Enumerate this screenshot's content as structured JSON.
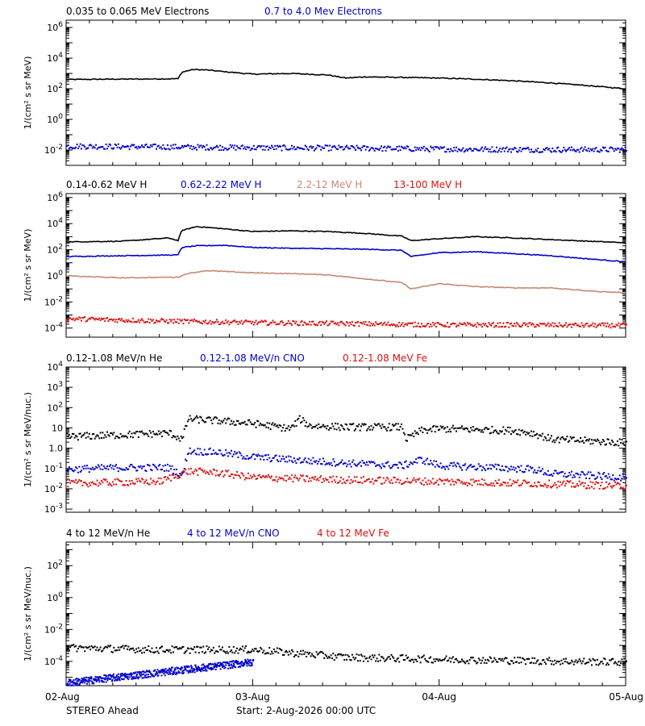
{
  "footer": {
    "left": "STEREO Ahead",
    "start": "Start:  2-Aug-2026 00:00 UTC"
  },
  "x_axis": {
    "labels": [
      "02-Aug",
      "03-Aug",
      "04-Aug",
      "05-Aug"
    ],
    "range_days": [
      0,
      3
    ]
  },
  "colors": {
    "black": "#000000",
    "blue": "#0000cc",
    "tan": "#c48a72",
    "red": "#dd1111"
  },
  "chart_data": [
    {
      "type": "scatter",
      "yscale": "log",
      "ylabel": "1/(cm² s sr MeV)",
      "ylim": [
        0.001,
        3000000
      ],
      "yticks": [
        {
          "m": "10",
          "e": "6",
          "v": 1000000
        },
        {
          "m": "10",
          "e": "4",
          "v": 10000
        },
        {
          "m": "10",
          "e": "2",
          "v": 100
        },
        {
          "m": "10",
          "e": "0",
          "v": 1
        },
        {
          "m": "10",
          "e": "-2",
          "v": 0.01
        }
      ],
      "legend": [
        "0.035 to 0.065 MeV Electrons",
        "0.7 to 4.0 Mev Electrons"
      ],
      "series": [
        {
          "name": "0.035 to 0.065 MeV Electrons",
          "color": "black",
          "style": "line",
          "x": [
            0,
            0.2,
            0.4,
            0.6,
            0.62,
            0.68,
            0.75,
            0.85,
            1.0,
            1.2,
            1.4,
            1.5,
            1.6,
            1.8,
            2.0,
            2.2,
            2.4,
            2.6,
            2.8,
            3.0
          ],
          "y": [
            400,
            420,
            430,
            450,
            1200,
            1800,
            1700,
            1300,
            900,
            1000,
            800,
            500,
            600,
            550,
            500,
            420,
            330,
            240,
            160,
            100
          ]
        },
        {
          "name": "0.7 to 4.0 Mev Electrons",
          "color": "blue",
          "style": "dots",
          "x": [
            0,
            0.5,
            1.0,
            1.5,
            2.0,
            2.5,
            3.0
          ],
          "y": [
            0.02,
            0.018,
            0.016,
            0.015,
            0.013,
            0.012,
            0.012
          ]
        }
      ]
    },
    {
      "type": "scatter",
      "yscale": "log",
      "ylabel": "1/(cm² s sr MeV)",
      "ylim": [
        2e-05,
        2000000
      ],
      "yticks": [
        {
          "m": "10",
          "e": "6",
          "v": 1000000
        },
        {
          "m": "10",
          "e": "4",
          "v": 10000
        },
        {
          "m": "10",
          "e": "2",
          "v": 100
        },
        {
          "m": "10",
          "e": "0",
          "v": 1
        },
        {
          "m": "10",
          "e": "-2",
          "v": 0.01
        },
        {
          "m": "10",
          "e": "-4",
          "v": 0.0001
        }
      ],
      "legend": [
        "0.14-0.62 MeV H",
        "0.62-2.22 MeV H",
        "2.2-12 MeV H",
        "13-100 MeV H"
      ],
      "series": [
        {
          "name": "0.14-0.62 MeV H",
          "color": "black",
          "style": "line",
          "x": [
            0,
            0.3,
            0.55,
            0.6,
            0.62,
            0.7,
            0.85,
            1.0,
            1.2,
            1.4,
            1.6,
            1.8,
            1.85,
            2.0,
            2.2,
            2.4,
            2.6,
            2.8,
            3.0
          ],
          "y": [
            400,
            450,
            800,
            500,
            3000,
            6000,
            4000,
            2500,
            2800,
            2500,
            1800,
            1100,
            500,
            700,
            1000,
            800,
            600,
            450,
            350
          ]
        },
        {
          "name": "0.62-2.22 MeV H",
          "color": "blue",
          "style": "line",
          "x": [
            0,
            0.3,
            0.6,
            0.62,
            0.7,
            0.85,
            1.0,
            1.2,
            1.4,
            1.6,
            1.8,
            1.85,
            2.0,
            2.2,
            2.4,
            2.6,
            2.8,
            3.0
          ],
          "y": [
            30,
            35,
            40,
            150,
            200,
            220,
            150,
            130,
            120,
            110,
            90,
            30,
            60,
            70,
            50,
            35,
            20,
            12
          ]
        },
        {
          "name": "2.2-12 MeV H",
          "color": "tan",
          "style": "line",
          "x": [
            0,
            0.3,
            0.6,
            0.65,
            0.75,
            0.9,
            1.0,
            1.2,
            1.4,
            1.6,
            1.8,
            1.85,
            2.0,
            2.2,
            2.4,
            2.6,
            2.8,
            3.0
          ],
          "y": [
            1,
            0.7,
            0.8,
            1.5,
            2.5,
            2.0,
            1.7,
            1.5,
            1.2,
            0.6,
            0.3,
            0.1,
            0.25,
            0.15,
            0.12,
            0.12,
            0.07,
            0.05
          ]
        },
        {
          "name": "13-100 MeV H",
          "color": "red",
          "style": "dots",
          "x": [
            0,
            0.5,
            1.0,
            1.5,
            2.0,
            2.5,
            3.0
          ],
          "y": [
            0.0006,
            0.0004,
            0.0003,
            0.00025,
            0.0002,
            0.0002,
            0.00018
          ]
        }
      ]
    },
    {
      "type": "scatter",
      "yscale": "log",
      "ylabel": "1/(cm² s sr MeV/nuc.)",
      "ylim": [
        0.0007,
        10000
      ],
      "yticks": [
        {
          "m": "10",
          "e": "4",
          "v": 10000
        },
        {
          "m": "10",
          "e": "3",
          "v": 1000
        },
        {
          "m": "10",
          "e": "2",
          "v": 100
        },
        {
          "m": "10",
          "e": "",
          "v": 10
        },
        {
          "m": "1.0",
          "e": "",
          "v": 1
        },
        {
          "m": "10",
          "e": "-1",
          "v": 0.1
        },
        {
          "m": "10",
          "e": "-2",
          "v": 0.01
        },
        {
          "m": "10",
          "e": "-3",
          "v": 0.001
        }
      ],
      "legend": [
        "0.12-1.08 MeV/n He",
        "0.12-1.08 MeV/n CNO",
        "0.12-1.08 MeV Fe"
      ],
      "series": [
        {
          "name": "0.12-1.08 MeV/n He",
          "color": "black",
          "style": "dots",
          "x": [
            0,
            0.3,
            0.55,
            0.62,
            0.65,
            0.8,
            1.0,
            1.2,
            1.25,
            1.3,
            1.5,
            1.8,
            1.82,
            1.9,
            2.0,
            2.2,
            2.4,
            2.5,
            2.6,
            2.8,
            3.0
          ],
          "y": [
            4,
            5,
            6,
            3,
            30,
            25,
            18,
            10,
            30,
            14,
            12,
            12,
            3,
            8,
            10,
            9,
            8,
            6,
            3,
            2.5,
            2
          ]
        },
        {
          "name": "0.12-1.08 MeV/n CNO",
          "color": "blue",
          "style": "dots",
          "x": [
            0,
            0.3,
            0.55,
            0.62,
            0.65,
            0.8,
            1.0,
            1.2,
            1.5,
            1.8,
            1.9,
            2.0,
            2.3,
            2.5,
            2.6,
            3.0
          ],
          "y": [
            0.1,
            0.12,
            0.12,
            0.05,
            0.8,
            0.7,
            0.4,
            0.3,
            0.2,
            0.15,
            0.3,
            0.15,
            0.12,
            0.1,
            0.06,
            0.04
          ]
        },
        {
          "name": "0.12-1.08 MeV Fe",
          "color": "red",
          "style": "dots",
          "x": [
            0,
            0.5,
            0.65,
            0.8,
            1.0,
            1.5,
            2.0,
            2.5,
            3.0
          ],
          "y": [
            0.02,
            0.025,
            0.08,
            0.07,
            0.04,
            0.03,
            0.025,
            0.02,
            0.015
          ]
        }
      ]
    },
    {
      "type": "scatter",
      "yscale": "log",
      "ylabel": "1/(cm² s sr MeV/nuc.)",
      "ylim": [
        3e-06,
        3000
      ],
      "yticks": [
        {
          "m": "10",
          "e": "2",
          "v": 100
        },
        {
          "m": "10",
          "e": "0",
          "v": 1
        },
        {
          "m": "10",
          "e": "-2",
          "v": 0.01
        },
        {
          "m": "10",
          "e": "-4",
          "v": 0.0001
        }
      ],
      "legend": [
        "4 to 12 MeV/n He",
        "4 to 12 MeV/n CNO",
        "4 to 12 MeV Fe"
      ],
      "series": [
        {
          "name": "4 to 12 MeV/n He",
          "color": "black",
          "style": "dots",
          "x": [
            0,
            0.5,
            1.0,
            1.5,
            2.0,
            2.5,
            3.0
          ],
          "y": [
            0.0008,
            0.0006,
            0.0006,
            0.0002,
            0.00015,
            0.00012,
            0.0001
          ]
        },
        {
          "name": "4 to 12 MeV/n CNO",
          "color": "blue",
          "style": "dots",
          "x": [
            0,
            1.0
          ],
          "y": [
            5e-06,
            0.0001
          ]
        },
        {
          "name": "4 to 12 MeV Fe",
          "color": "red",
          "style": "dots",
          "x": [],
          "y": []
        }
      ]
    }
  ]
}
